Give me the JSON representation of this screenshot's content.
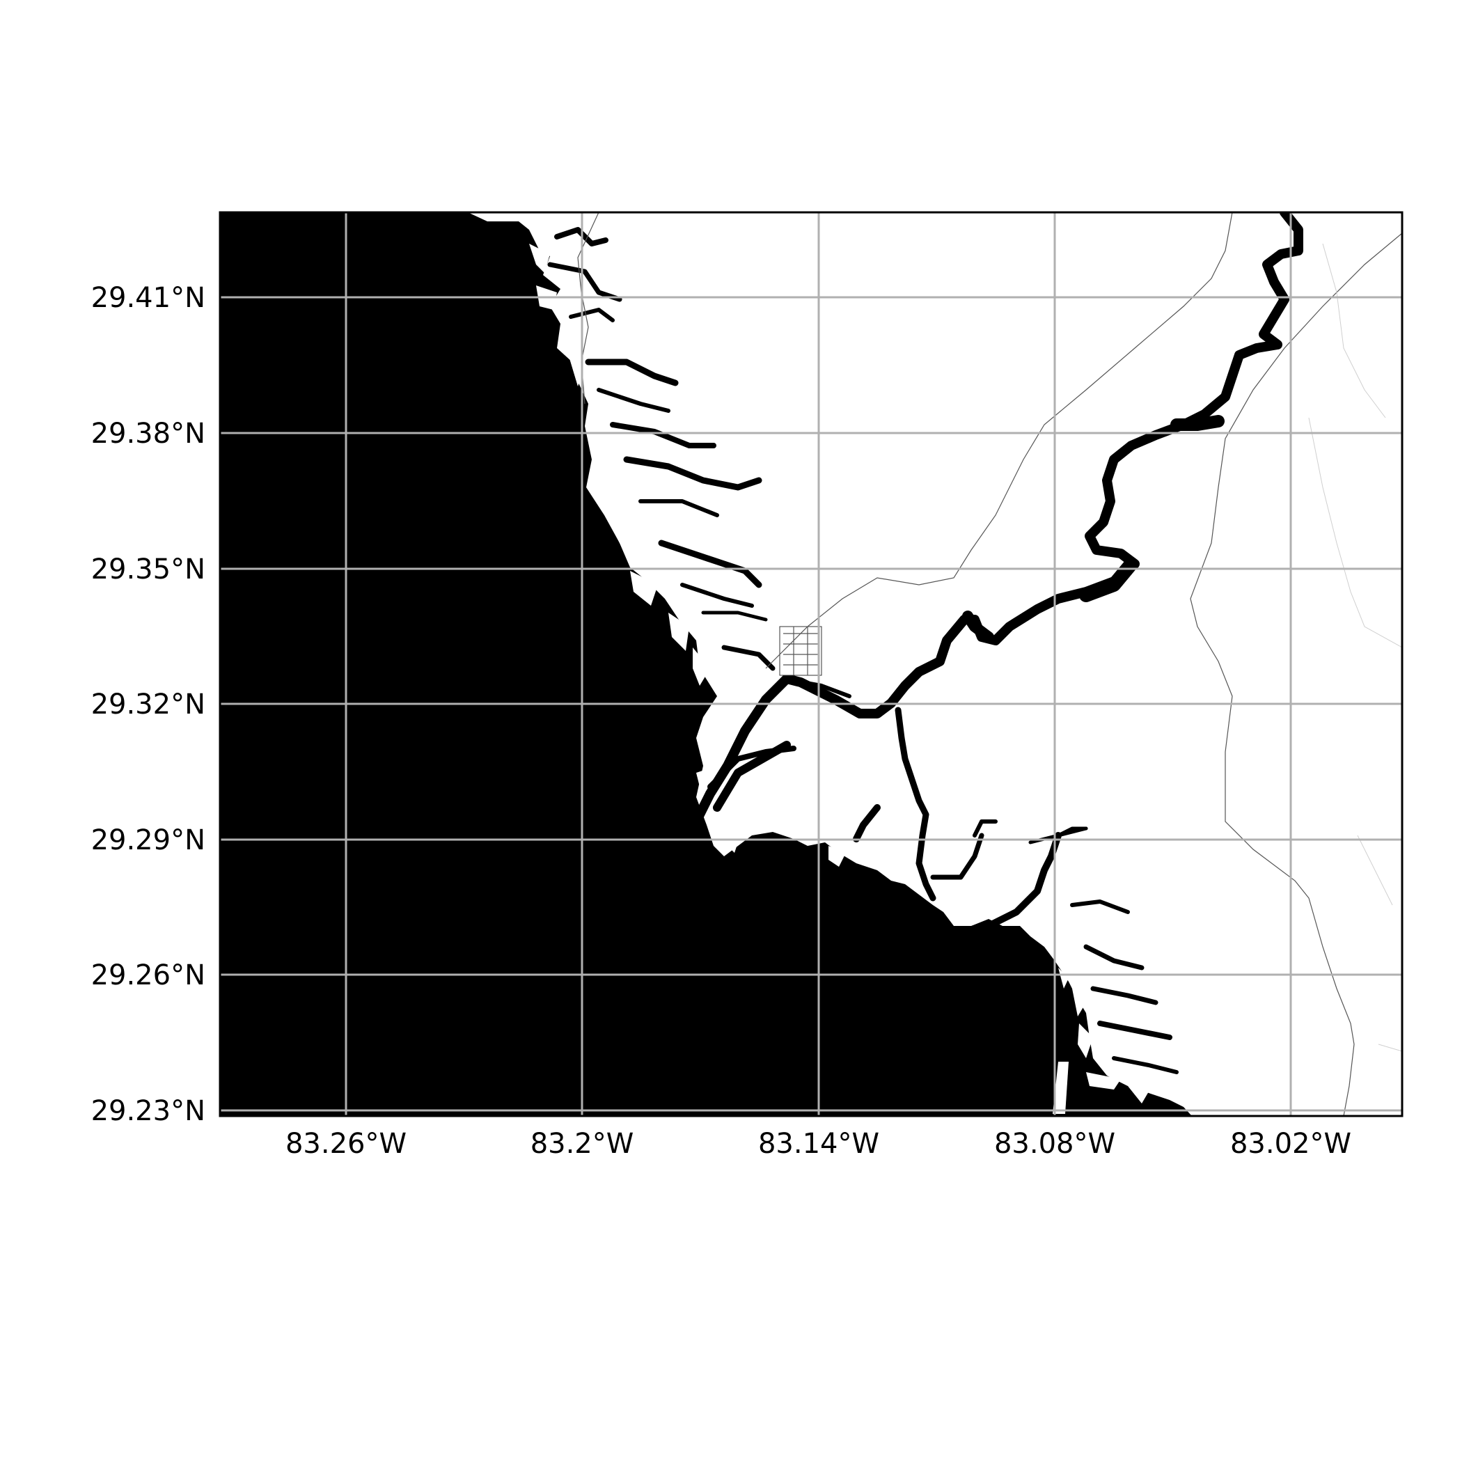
{
  "map": {
    "lon_range": [
      -83.293,
      -82.992
    ],
    "lat_range": [
      29.2285,
      29.4275
    ],
    "lon_ticks": [
      {
        "value": -83.26,
        "label": "83.26°W"
      },
      {
        "value": -83.2,
        "label": "83.2°W"
      },
      {
        "value": -83.14,
        "label": "83.14°W"
      },
      {
        "value": -83.08,
        "label": "83.08°W"
      },
      {
        "value": -83.02,
        "label": "83.02°W"
      }
    ],
    "lat_ticks": [
      {
        "value": 29.41,
        "label": "29.41°N"
      },
      {
        "value": 29.38,
        "label": "29.38°N"
      },
      {
        "value": 29.35,
        "label": "29.35°N"
      },
      {
        "value": 29.32,
        "label": "29.32°N"
      },
      {
        "value": 29.29,
        "label": "29.29°N"
      },
      {
        "value": 29.26,
        "label": "29.26°N"
      },
      {
        "value": 29.23,
        "label": "29.23°N"
      }
    ],
    "grid": true,
    "colors": {
      "water": "#000000",
      "land": "#ffffff",
      "grid": "#b0b0b0",
      "roads": "#555555"
    }
  }
}
